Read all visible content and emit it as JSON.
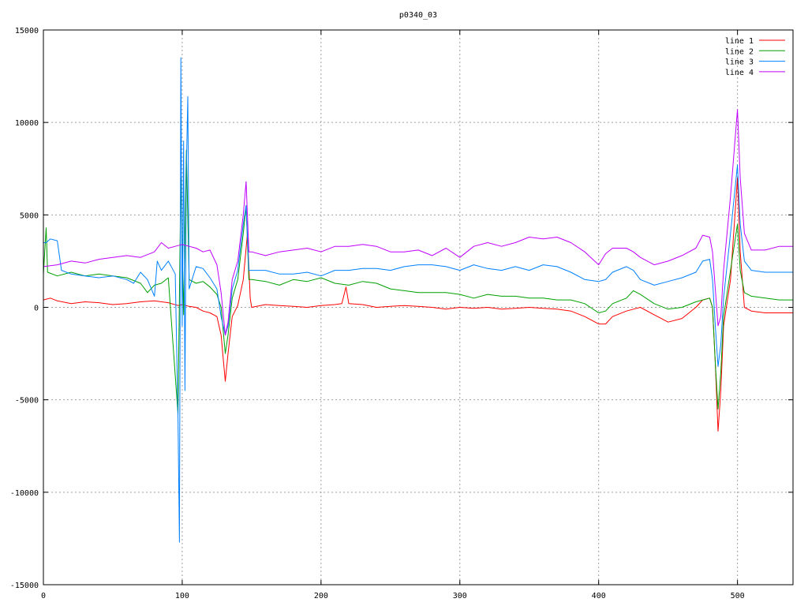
{
  "chart_data": {
    "type": "line",
    "title": "p0340_03",
    "xlabel": "",
    "ylabel": "",
    "xlim": [
      0,
      540
    ],
    "ylim": [
      -15000,
      15000
    ],
    "x_ticks": [
      0,
      100,
      200,
      300,
      400,
      500
    ],
    "y_ticks": [
      -15000,
      -10000,
      -5000,
      0,
      5000,
      10000,
      15000
    ],
    "grid": true,
    "legend_position": "top-right",
    "series": [
      {
        "name": "line 1",
        "color": "#ff0000",
        "points": [
          [
            0,
            400
          ],
          [
            5,
            500
          ],
          [
            10,
            350
          ],
          [
            20,
            200
          ],
          [
            30,
            300
          ],
          [
            40,
            250
          ],
          [
            50,
            150
          ],
          [
            60,
            200
          ],
          [
            70,
            300
          ],
          [
            80,
            350
          ],
          [
            90,
            250
          ],
          [
            97,
            100
          ],
          [
            100,
            150
          ],
          [
            105,
            50
          ],
          [
            110,
            0
          ],
          [
            115,
            -200
          ],
          [
            120,
            -300
          ],
          [
            125,
            -500
          ],
          [
            128,
            -1500
          ],
          [
            131,
            -4000
          ],
          [
            133,
            -2500
          ],
          [
            136,
            -500
          ],
          [
            140,
            100
          ],
          [
            144,
            1500
          ],
          [
            147,
            4000
          ],
          [
            149,
            500
          ],
          [
            150,
            0
          ],
          [
            160,
            150
          ],
          [
            170,
            100
          ],
          [
            180,
            50
          ],
          [
            190,
            0
          ],
          [
            200,
            100
          ],
          [
            210,
            150
          ],
          [
            215,
            200
          ],
          [
            218,
            1100
          ],
          [
            220,
            200
          ],
          [
            230,
            150
          ],
          [
            240,
            0
          ],
          [
            250,
            50
          ],
          [
            260,
            100
          ],
          [
            270,
            50
          ],
          [
            280,
            0
          ],
          [
            290,
            -100
          ],
          [
            300,
            0
          ],
          [
            310,
            -50
          ],
          [
            320,
            0
          ],
          [
            330,
            -100
          ],
          [
            340,
            -50
          ],
          [
            350,
            0
          ],
          [
            360,
            -50
          ],
          [
            370,
            -100
          ],
          [
            380,
            -200
          ],
          [
            390,
            -500
          ],
          [
            400,
            -900
          ],
          [
            405,
            -900
          ],
          [
            410,
            -500
          ],
          [
            420,
            -200
          ],
          [
            425,
            -100
          ],
          [
            430,
            0
          ],
          [
            440,
            -400
          ],
          [
            450,
            -800
          ],
          [
            460,
            -600
          ],
          [
            470,
            0
          ],
          [
            475,
            400
          ],
          [
            480,
            500
          ],
          [
            482,
            0
          ],
          [
            484,
            -3000
          ],
          [
            486,
            -6700
          ],
          [
            488,
            -4500
          ],
          [
            490,
            -1000
          ],
          [
            495,
            1500
          ],
          [
            500,
            7000
          ],
          [
            502,
            3000
          ],
          [
            505,
            0
          ],
          [
            510,
            -200
          ],
          [
            520,
            -300
          ],
          [
            530,
            -300
          ],
          [
            540,
            -300
          ]
        ]
      },
      {
        "name": "line 2",
        "color": "#00a000",
        "points": [
          [
            0,
            1800
          ],
          [
            2,
            4300
          ],
          [
            3,
            1900
          ],
          [
            10,
            1700
          ],
          [
            20,
            1900
          ],
          [
            30,
            1700
          ],
          [
            40,
            1800
          ],
          [
            50,
            1700
          ],
          [
            60,
            1600
          ],
          [
            70,
            1300
          ],
          [
            75,
            800
          ],
          [
            80,
            1200
          ],
          [
            85,
            1300
          ],
          [
            90,
            1600
          ],
          [
            97,
            -5800
          ],
          [
            99,
            7000
          ],
          [
            101,
            -400
          ],
          [
            103,
            8500
          ],
          [
            105,
            1500
          ],
          [
            110,
            1300
          ],
          [
            115,
            1400
          ],
          [
            120,
            1100
          ],
          [
            125,
            700
          ],
          [
            128,
            0
          ],
          [
            131,
            -2500
          ],
          [
            133,
            -1500
          ],
          [
            136,
            500
          ],
          [
            140,
            1500
          ],
          [
            144,
            4000
          ],
          [
            146,
            5500
          ],
          [
            148,
            1500
          ],
          [
            150,
            1500
          ],
          [
            160,
            1400
          ],
          [
            170,
            1200
          ],
          [
            180,
            1500
          ],
          [
            190,
            1400
          ],
          [
            200,
            1600
          ],
          [
            210,
            1300
          ],
          [
            220,
            1200
          ],
          [
            230,
            1400
          ],
          [
            240,
            1300
          ],
          [
            250,
            1000
          ],
          [
            260,
            900
          ],
          [
            270,
            800
          ],
          [
            280,
            800
          ],
          [
            290,
            800
          ],
          [
            300,
            700
          ],
          [
            310,
            500
          ],
          [
            320,
            700
          ],
          [
            330,
            600
          ],
          [
            340,
            600
          ],
          [
            350,
            500
          ],
          [
            360,
            500
          ],
          [
            370,
            400
          ],
          [
            380,
            400
          ],
          [
            390,
            200
          ],
          [
            400,
            -300
          ],
          [
            405,
            -200
          ],
          [
            410,
            200
          ],
          [
            420,
            500
          ],
          [
            425,
            900
          ],
          [
            430,
            700
          ],
          [
            440,
            200
          ],
          [
            450,
            -100
          ],
          [
            460,
            0
          ],
          [
            470,
            300
          ],
          [
            480,
            500
          ],
          [
            482,
            0
          ],
          [
            484,
            -3000
          ],
          [
            486,
            -5500
          ],
          [
            488,
            -3500
          ],
          [
            490,
            -500
          ],
          [
            495,
            2000
          ],
          [
            500,
            4500
          ],
          [
            502,
            2000
          ],
          [
            505,
            800
          ],
          [
            510,
            600
          ],
          [
            520,
            500
          ],
          [
            530,
            400
          ],
          [
            540,
            400
          ]
        ]
      },
      {
        "name": "line 3",
        "color": "#0080ff",
        "points": [
          [
            0,
            3500
          ],
          [
            2,
            3500
          ],
          [
            5,
            3700
          ],
          [
            10,
            3600
          ],
          [
            13,
            2000
          ],
          [
            20,
            1800
          ],
          [
            30,
            1700
          ],
          [
            40,
            1600
          ],
          [
            50,
            1700
          ],
          [
            60,
            1500
          ],
          [
            65,
            1300
          ],
          [
            70,
            1900
          ],
          [
            75,
            1500
          ],
          [
            80,
            600
          ],
          [
            82,
            2500
          ],
          [
            85,
            2000
          ],
          [
            90,
            2500
          ],
          [
            95,
            1800
          ],
          [
            97,
            -6000
          ],
          [
            98,
            -12700
          ],
          [
            99,
            13500
          ],
          [
            100,
            -1000
          ],
          [
            101,
            9000
          ],
          [
            102,
            -4500
          ],
          [
            103,
            7500
          ],
          [
            104,
            11400
          ],
          [
            105,
            1000
          ],
          [
            110,
            2200
          ],
          [
            115,
            2100
          ],
          [
            120,
            1600
          ],
          [
            125,
            1000
          ],
          [
            128,
            -500
          ],
          [
            131,
            -1500
          ],
          [
            133,
            -1000
          ],
          [
            136,
            1000
          ],
          [
            140,
            2000
          ],
          [
            144,
            4500
          ],
          [
            146,
            5500
          ],
          [
            148,
            2000
          ],
          [
            150,
            2000
          ],
          [
            160,
            2000
          ],
          [
            170,
            1800
          ],
          [
            180,
            1800
          ],
          [
            190,
            1900
          ],
          [
            200,
            1700
          ],
          [
            210,
            2000
          ],
          [
            220,
            2000
          ],
          [
            230,
            2100
          ],
          [
            240,
            2100
          ],
          [
            250,
            2000
          ],
          [
            260,
            2200
          ],
          [
            270,
            2300
          ],
          [
            280,
            2300
          ],
          [
            290,
            2200
          ],
          [
            300,
            2000
          ],
          [
            310,
            2300
          ],
          [
            320,
            2100
          ],
          [
            330,
            2000
          ],
          [
            340,
            2200
          ],
          [
            350,
            2000
          ],
          [
            360,
            2300
          ],
          [
            370,
            2200
          ],
          [
            380,
            1900
          ],
          [
            390,
            1500
          ],
          [
            400,
            1400
          ],
          [
            405,
            1500
          ],
          [
            410,
            1900
          ],
          [
            420,
            2200
          ],
          [
            425,
            2000
          ],
          [
            430,
            1500
          ],
          [
            440,
            1200
          ],
          [
            450,
            1400
          ],
          [
            460,
            1600
          ],
          [
            470,
            1900
          ],
          [
            475,
            2500
          ],
          [
            480,
            2600
          ],
          [
            482,
            1500
          ],
          [
            484,
            -1000
          ],
          [
            486,
            -3200
          ],
          [
            488,
            -2000
          ],
          [
            490,
            500
          ],
          [
            495,
            4000
          ],
          [
            500,
            7700
          ],
          [
            502,
            4500
          ],
          [
            505,
            2500
          ],
          [
            510,
            2000
          ],
          [
            520,
            1900
          ],
          [
            530,
            1900
          ],
          [
            540,
            1900
          ]
        ]
      },
      {
        "name": "line 4",
        "color": "#c000ff",
        "points": [
          [
            0,
            2200
          ],
          [
            10,
            2300
          ],
          [
            20,
            2500
          ],
          [
            30,
            2400
          ],
          [
            40,
            2600
          ],
          [
            50,
            2700
          ],
          [
            60,
            2800
          ],
          [
            70,
            2700
          ],
          [
            80,
            3000
          ],
          [
            85,
            3500
          ],
          [
            90,
            3200
          ],
          [
            95,
            3300
          ],
          [
            100,
            3400
          ],
          [
            110,
            3200
          ],
          [
            115,
            3000
          ],
          [
            120,
            3100
          ],
          [
            125,
            2300
          ],
          [
            128,
            800
          ],
          [
            131,
            -1500
          ],
          [
            133,
            -800
          ],
          [
            136,
            1500
          ],
          [
            140,
            2500
          ],
          [
            144,
            5000
          ],
          [
            146,
            6800
          ],
          [
            148,
            3000
          ],
          [
            150,
            3000
          ],
          [
            160,
            2800
          ],
          [
            170,
            3000
          ],
          [
            180,
            3100
          ],
          [
            190,
            3200
          ],
          [
            200,
            3000
          ],
          [
            210,
            3300
          ],
          [
            220,
            3300
          ],
          [
            230,
            3400
          ],
          [
            240,
            3300
          ],
          [
            250,
            3000
          ],
          [
            260,
            3000
          ],
          [
            270,
            3100
          ],
          [
            280,
            2800
          ],
          [
            290,
            3200
          ],
          [
            300,
            2700
          ],
          [
            310,
            3300
          ],
          [
            320,
            3500
          ],
          [
            330,
            3300
          ],
          [
            340,
            3500
          ],
          [
            350,
            3800
          ],
          [
            360,
            3700
          ],
          [
            370,
            3800
          ],
          [
            380,
            3500
          ],
          [
            390,
            3000
          ],
          [
            400,
            2300
          ],
          [
            405,
            2900
          ],
          [
            410,
            3200
          ],
          [
            420,
            3200
          ],
          [
            425,
            3000
          ],
          [
            430,
            2700
          ],
          [
            440,
            2300
          ],
          [
            450,
            2500
          ],
          [
            460,
            2800
          ],
          [
            470,
            3200
          ],
          [
            475,
            3900
          ],
          [
            480,
            3800
          ],
          [
            482,
            3000
          ],
          [
            484,
            1000
          ],
          [
            486,
            -1000
          ],
          [
            488,
            -500
          ],
          [
            490,
            2000
          ],
          [
            495,
            6000
          ],
          [
            500,
            10700
          ],
          [
            502,
            7000
          ],
          [
            505,
            4000
          ],
          [
            510,
            3100
          ],
          [
            520,
            3100
          ],
          [
            530,
            3300
          ],
          [
            540,
            3300
          ]
        ]
      }
    ]
  }
}
